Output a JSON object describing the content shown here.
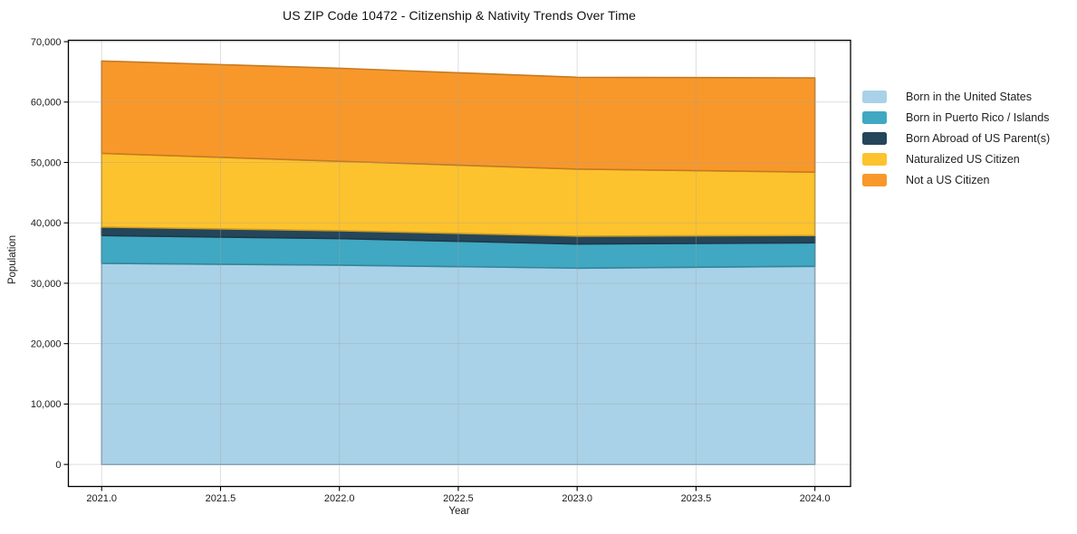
{
  "chart_data": {
    "type": "area",
    "stacked": true,
    "title": "US ZIP Code 10472 - Citizenship & Nativity Trends Over Time",
    "xlabel": "Year",
    "ylabel": "Population",
    "x": [
      2021,
      2022,
      2023,
      2024
    ],
    "series": [
      {
        "name": "Born in the United States",
        "color": "#a9d2e8",
        "values": [
          33300,
          33000,
          32500,
          32800
        ]
      },
      {
        "name": "Born in Puerto Rico / Islands",
        "color": "#40a8c2",
        "values": [
          4600,
          4400,
          4000,
          3900
        ]
      },
      {
        "name": "Born Abroad of US Parent(s)",
        "color": "#25465a",
        "values": [
          1400,
          1300,
          1300,
          1200
        ]
      },
      {
        "name": "Naturalized US Citizen",
        "color": "#fdc32e",
        "values": [
          12200,
          11500,
          11100,
          10500
        ]
      },
      {
        "name": "Not a US Citizen",
        "color": "#f8982b",
        "values": [
          15300,
          15400,
          15200,
          15600
        ]
      }
    ],
    "xlim": [
      2020.86,
      2024.15
    ],
    "ylim": [
      -3650,
      70230
    ],
    "xticks": [
      2021.0,
      2021.5,
      2022.0,
      2022.5,
      2023.0,
      2023.5,
      2024.0
    ],
    "xtick_labels": [
      "2021.0",
      "2021.5",
      "2022.0",
      "2022.5",
      "2023.0",
      "2023.5",
      "2024.0"
    ],
    "yticks": [
      0,
      10000,
      20000,
      30000,
      40000,
      50000,
      60000,
      70000
    ],
    "ytick_labels": [
      "0",
      "10,000",
      "20,000",
      "30,000",
      "40,000",
      "50,000",
      "60,000",
      "70,000"
    ],
    "grid": true,
    "legend_position": "right",
    "axis_color": "#000000",
    "tick_label_color": "#1a1a1a"
  }
}
